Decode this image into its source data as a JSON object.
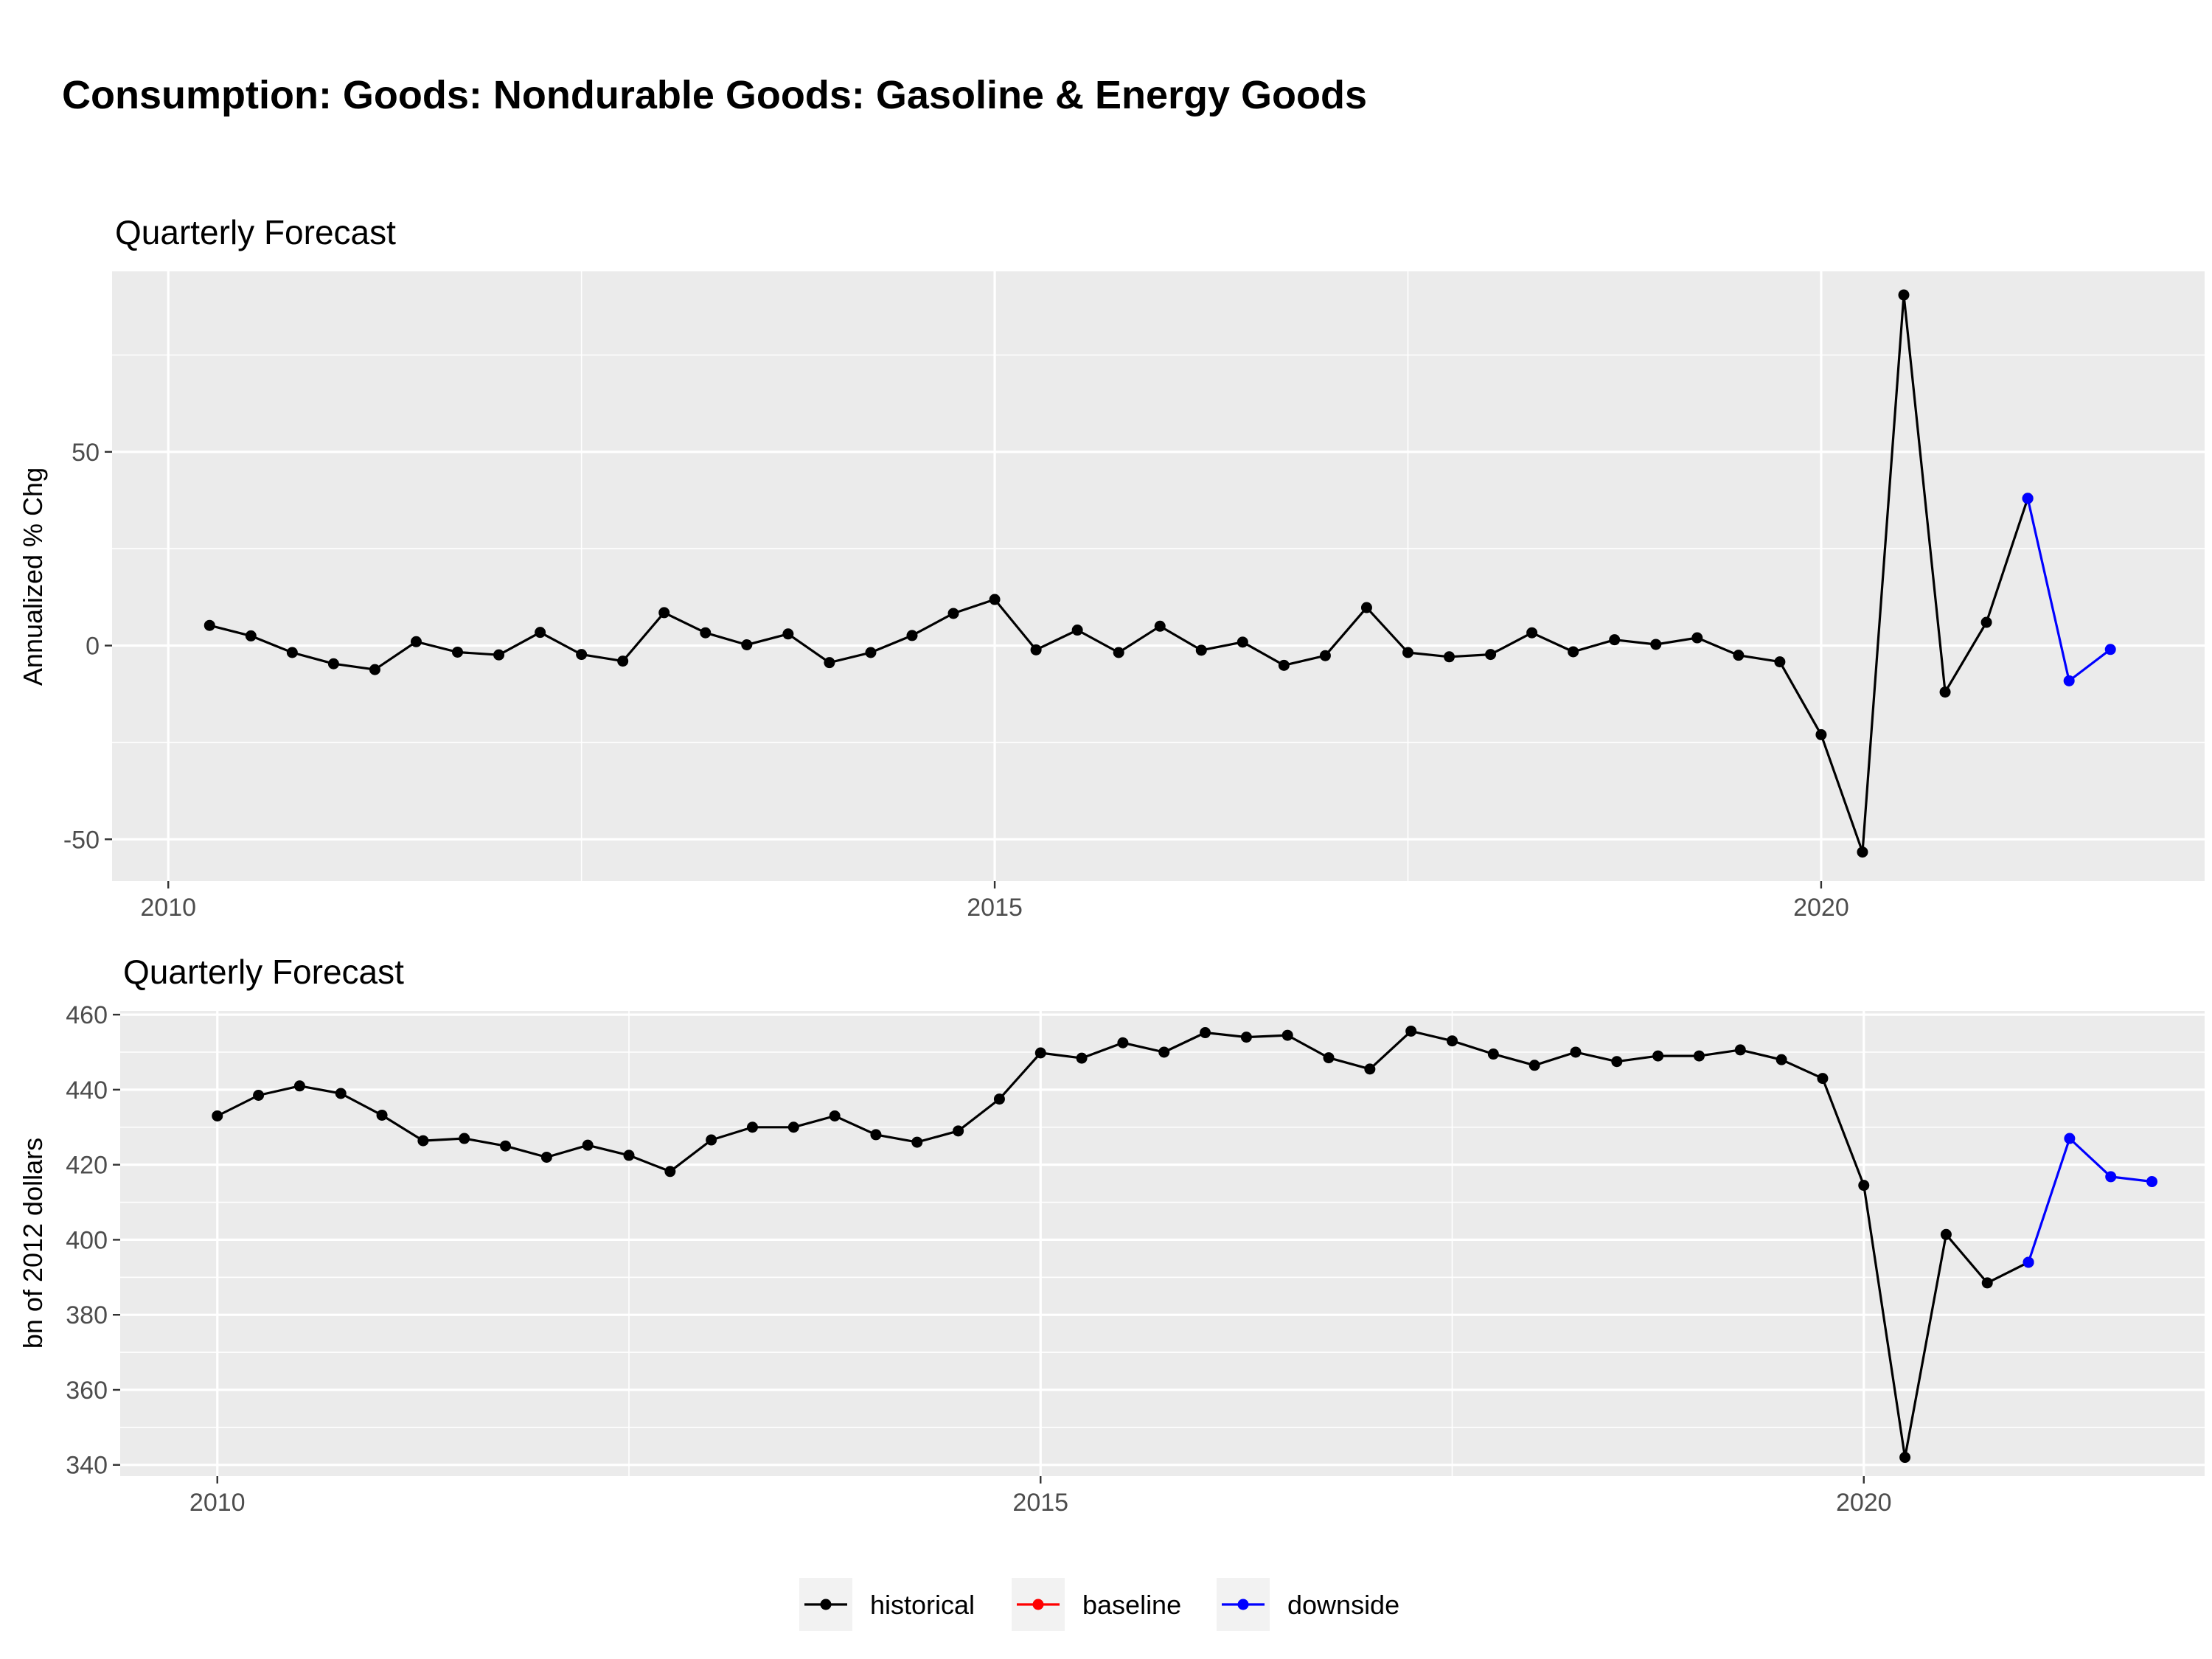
{
  "main_title": "Consumption: Goods: Nondurable Goods: Gasoline & Energy Goods",
  "legend": [
    {
      "label": "historical",
      "color": "#000000"
    },
    {
      "label": "baseline",
      "color": "#ff0000"
    },
    {
      "label": "downside",
      "color": "#0000ff"
    }
  ],
  "chart_data": [
    {
      "type": "line",
      "title": "Quarterly Forecast",
      "xlabel": "",
      "ylabel": "Annualized % Chg",
      "xlim": [
        2009.66,
        2022.32
      ],
      "ylim": [
        -60.8,
        96.6
      ],
      "x_ticks": [
        2010,
        2015,
        2020
      ],
      "y_ticks": [
        -50,
        0,
        50
      ],
      "grid": true,
      "series": [
        {
          "name": "historical",
          "color": "#000000",
          "x": [
            2010.25,
            2010.5,
            2010.75,
            2011,
            2011.25,
            2011.5,
            2011.75,
            2012,
            2012.25,
            2012.5,
            2012.75,
            2013,
            2013.25,
            2013.5,
            2013.75,
            2014,
            2014.25,
            2014.5,
            2014.75,
            2015,
            2015.25,
            2015.5,
            2015.75,
            2016,
            2016.25,
            2016.5,
            2016.75,
            2017,
            2017.25,
            2017.5,
            2017.75,
            2018,
            2018.25,
            2018.5,
            2018.75,
            2019,
            2019.25,
            2019.5,
            2019.75,
            2020,
            2020.25,
            2020.5,
            2020.75,
            2021,
            2021.25
          ],
          "y": [
            5.2,
            2.5,
            -1.8,
            -4.7,
            -6.2,
            1.0,
            -1.7,
            -2.4,
            3.4,
            -2.3,
            -4.0,
            8.5,
            3.3,
            0.2,
            3.0,
            -4.4,
            -1.8,
            2.6,
            8.3,
            11.9,
            -1.1,
            4.0,
            -1.8,
            5.0,
            -1.2,
            0.9,
            -5.1,
            -2.6,
            9.8,
            -1.8,
            -2.9,
            -2.3,
            3.3,
            -1.6,
            1.5,
            0.3,
            2.0,
            -2.5,
            -4.2,
            -23.0,
            -53.3,
            90.5,
            -12.0,
            6.0,
            38.0
          ]
        },
        {
          "name": "downside",
          "color": "#0000ff",
          "x": [
            2021.25,
            2021.5,
            2021.75
          ],
          "y": [
            38.0,
            -9.1,
            -1.0
          ]
        }
      ]
    },
    {
      "type": "line",
      "title": "Quarterly Forecast",
      "xlabel": "",
      "ylabel": "bn of 2012 dollars",
      "xlim": [
        2009.41,
        2022.07
      ],
      "ylim": [
        337,
        461
      ],
      "x_ticks": [
        2010,
        2015,
        2020
      ],
      "y_ticks": [
        340,
        360,
        380,
        400,
        420,
        440,
        460
      ],
      "grid": true,
      "series": [
        {
          "name": "historical",
          "color": "#000000",
          "x": [
            2010,
            2010.25,
            2010.5,
            2010.75,
            2011,
            2011.25,
            2011.5,
            2011.75,
            2012,
            2012.25,
            2012.5,
            2012.75,
            2013,
            2013.25,
            2013.5,
            2013.75,
            2014,
            2014.25,
            2014.5,
            2014.75,
            2015,
            2015.25,
            2015.5,
            2015.75,
            2016,
            2016.25,
            2016.5,
            2016.75,
            2017,
            2017.25,
            2017.5,
            2017.75,
            2018,
            2018.25,
            2018.5,
            2018.75,
            2019,
            2019.25,
            2019.5,
            2019.75,
            2020,
            2020.25,
            2020.5,
            2020.75,
            2021
          ],
          "y": [
            433,
            438.5,
            441,
            439,
            433.2,
            426.4,
            427,
            425,
            422,
            425.2,
            422.5,
            418.2,
            426.6,
            430,
            430,
            433,
            428,
            426,
            429,
            437.5,
            449.8,
            448.4,
            452.5,
            450,
            455.2,
            454,
            454.5,
            448.5,
            445.5,
            455.6,
            453,
            449.5,
            446.5,
            450,
            447.5,
            449,
            449,
            450.6,
            448,
            443,
            414.5,
            342,
            401.4,
            388.5,
            394
          ]
        },
        {
          "name": "downside",
          "color": "#0000ff",
          "x": [
            2021,
            2021.25,
            2021.5,
            2021.75
          ],
          "y": [
            394,
            427,
            416.8,
            415.5
          ]
        }
      ]
    }
  ]
}
